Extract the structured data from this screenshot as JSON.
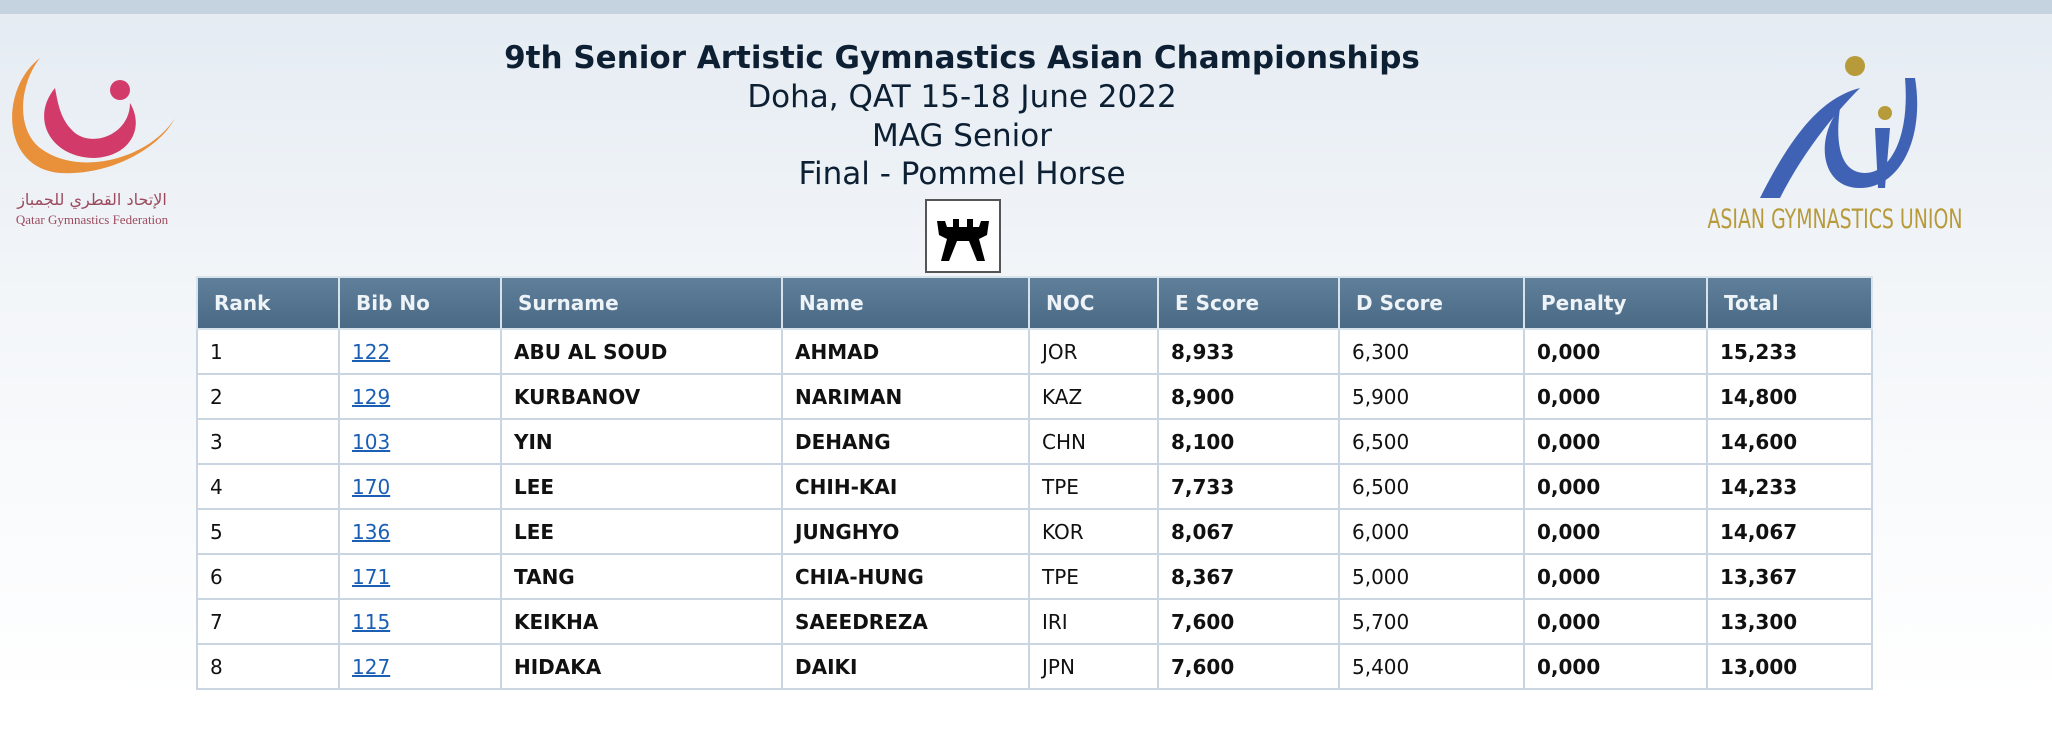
{
  "header": {
    "title": "9th Senior Artistic Gymnastics Asian Championships",
    "location": "Doha, QAT 15-18 June 2022",
    "category": "MAG Senior",
    "event": "Final - Pommel Horse"
  },
  "logos": {
    "left_arabic": "الإتحاد القطري للجمباز",
    "left": "Qatar Gymnastics Federation",
    "right": "ASIAN GYMNASTICS UNION"
  },
  "table": {
    "columns": [
      "Rank",
      "Bib No",
      "Surname",
      "Name",
      "NOC",
      "E Score",
      "D Score",
      "Penalty",
      "Total"
    ],
    "rows": [
      [
        "1",
        "122",
        "ABU AL SOUD",
        "AHMAD",
        "JOR",
        "8,933",
        "6,300",
        "0,000",
        "15,233"
      ],
      [
        "2",
        "129",
        "KURBANOV",
        "NARIMAN",
        "KAZ",
        "8,900",
        "5,900",
        "0,000",
        "14,800"
      ],
      [
        "3",
        "103",
        "YIN",
        "DEHANG",
        "CHN",
        "8,100",
        "6,500",
        "0,000",
        "14,600"
      ],
      [
        "4",
        "170",
        "LEE",
        "CHIH-KAI",
        "TPE",
        "7,733",
        "6,500",
        "0,000",
        "14,233"
      ],
      [
        "5",
        "136",
        "LEE",
        "JUNGHYO",
        "KOR",
        "8,067",
        "6,000",
        "0,000",
        "14,067"
      ],
      [
        "6",
        "171",
        "TANG",
        "CHIA-HUNG",
        "TPE",
        "8,367",
        "5,000",
        "0,000",
        "13,367"
      ],
      [
        "7",
        "115",
        "KEIKHA",
        "SAEEDREZA",
        "IRI",
        "7,600",
        "5,700",
        "0,000",
        "13,300"
      ],
      [
        "8",
        "127",
        "HIDAKA",
        "DAIKI",
        "JPN",
        "7,600",
        "5,400",
        "0,000",
        "13,000"
      ]
    ]
  }
}
